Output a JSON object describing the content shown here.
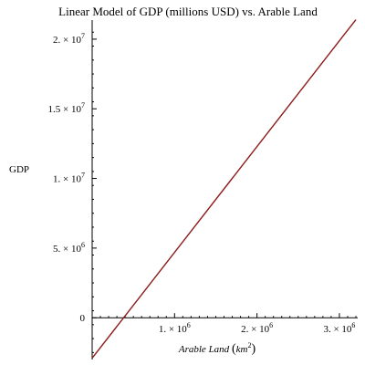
{
  "chart_data": {
    "type": "line",
    "title": "Linear Model of GDP (millions USD) vs. Arable Land",
    "ylabel": "GDP",
    "xlabel_text": "Arable Land",
    "xlabel_unit_base": "km",
    "xlabel_unit_exp": "2",
    "xlim": [
      0,
      3200000
    ],
    "ylim": [
      -3000000,
      21500000
    ],
    "x_ticks": [
      {
        "value": 1000000,
        "mantissa": "1.",
        "base": "× 10",
        "exp": "6"
      },
      {
        "value": 2000000,
        "mantissa": "2.",
        "base": "× 10",
        "exp": "6"
      },
      {
        "value": 3000000,
        "mantissa": "3.",
        "base": "× 10",
        "exp": "6"
      }
    ],
    "y_ticks": [
      {
        "value": 0,
        "mantissa": "0",
        "base": "",
        "exp": ""
      },
      {
        "value": 5000000,
        "mantissa": "5.",
        "base": "× 10",
        "exp": "6"
      },
      {
        "value": 10000000,
        "mantissa": "1.",
        "base": "× 10",
        "exp": "7"
      },
      {
        "value": 15000000,
        "mantissa": "1.5",
        "base": "× 10",
        "exp": "7"
      },
      {
        "value": 20000000,
        "mantissa": "2.",
        "base": "× 10",
        "exp": "7"
      }
    ],
    "series": [
      {
        "color": "#8b1a1a",
        "x": [
          0,
          3200000
        ],
        "y": [
          -2900000,
          21400000
        ]
      }
    ]
  }
}
